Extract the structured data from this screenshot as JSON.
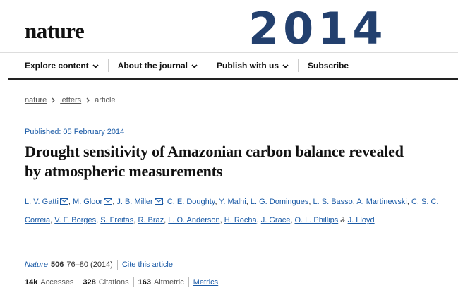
{
  "header": {
    "logo": "nature",
    "year": "2014",
    "nav": [
      "Explore content",
      "About the journal",
      "Publish with us",
      "Subscribe"
    ]
  },
  "breadcrumb": [
    "nature",
    "letters",
    "article"
  ],
  "article": {
    "published": "Published: 05 February 2014",
    "title": "Drought sensitivity of Amazonian carbon balance revealed by atmospheric measurements",
    "author_separator": ",",
    "last_author_prefix": "&",
    "authors": [
      {
        "name": "L. V. Gatti",
        "email": true
      },
      {
        "name": "M. Gloor",
        "email": true
      },
      {
        "name": "J. B. Miller",
        "email": true
      },
      {
        "name": "C. E. Doughty"
      },
      {
        "name": "Y. Malhi"
      },
      {
        "name": "L. G. Domingues"
      },
      {
        "name": "L. S. Basso"
      },
      {
        "name": "A. Martinewski"
      },
      {
        "name": "C. S. C. Correia"
      },
      {
        "name": "V. F. Borges"
      },
      {
        "name": "S. Freitas"
      },
      {
        "name": "R. Braz"
      },
      {
        "name": "L. O. Anderson"
      },
      {
        "name": "H. Rocha"
      },
      {
        "name": "J. Grace"
      },
      {
        "name": "O. L. Phillips"
      },
      {
        "name": "J. Lloyd"
      }
    ],
    "citation": {
      "journal": "Nature",
      "volume": "506",
      "pages": "76–80 (2014)",
      "cite": "Cite this article"
    },
    "metrics": [
      {
        "value": "14k",
        "label": "Accesses"
      },
      {
        "value": "328",
        "label": "Citations"
      },
      {
        "value": "163",
        "label": "Altmetric"
      }
    ],
    "metrics_link": "Metrics"
  }
}
